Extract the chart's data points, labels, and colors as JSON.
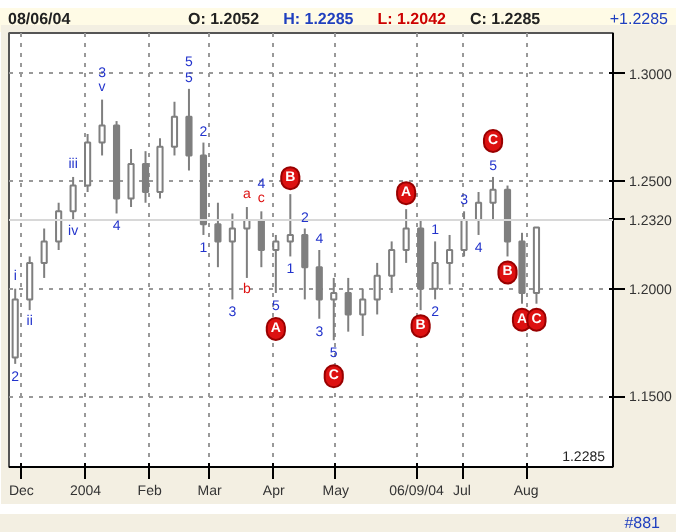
{
  "chart_data": {
    "type": "candlestick",
    "color": "#7f7f7f",
    "x": [
      "2003-11-28",
      "2003-12-05",
      "2003-12-12",
      "2003-12-19",
      "2003-12-26",
      "2004-01-02",
      "2004-01-09",
      "2004-01-16",
      "2004-01-23",
      "2004-01-30",
      "2004-02-06",
      "2004-02-13",
      "2004-02-20",
      "2004-02-27",
      "2004-03-05",
      "2004-03-12",
      "2004-03-19",
      "2004-03-26",
      "2004-04-02",
      "2004-04-09",
      "2004-04-16",
      "2004-04-23",
      "2004-04-30",
      "2004-05-07",
      "2004-05-14",
      "2004-05-21",
      "2004-05-28",
      "2004-06-04",
      "2004-06-11",
      "2004-06-18",
      "2004-06-25",
      "2004-07-02",
      "2004-07-09",
      "2004-07-16",
      "2004-07-23",
      "2004-07-30",
      "2004-08-06"
    ],
    "ohlc": [
      [
        1.168,
        1.2,
        1.165,
        1.195
      ],
      [
        1.195,
        1.215,
        1.19,
        1.212
      ],
      [
        1.212,
        1.228,
        1.205,
        1.222
      ],
      [
        1.222,
        1.24,
        1.218,
        1.236
      ],
      [
        1.236,
        1.252,
        1.232,
        1.248
      ],
      [
        1.248,
        1.272,
        1.245,
        1.268
      ],
      [
        1.268,
        1.288,
        1.262,
        1.276
      ],
      [
        1.276,
        1.278,
        1.235,
        1.242
      ],
      [
        1.242,
        1.265,
        1.238,
        1.258
      ],
      [
        1.258,
        1.264,
        1.24,
        1.245
      ],
      [
        1.245,
        1.27,
        1.242,
        1.266
      ],
      [
        1.266,
        1.287,
        1.262,
        1.28
      ],
      [
        1.28,
        1.293,
        1.255,
        1.262
      ],
      [
        1.262,
        1.268,
        1.225,
        1.23
      ],
      [
        1.23,
        1.24,
        1.21,
        1.222
      ],
      [
        1.222,
        1.235,
        1.195,
        1.228
      ],
      [
        1.228,
        1.238,
        1.205,
        1.232
      ],
      [
        1.232,
        1.236,
        1.21,
        1.218
      ],
      [
        1.218,
        1.225,
        1.198,
        1.222
      ],
      [
        1.222,
        1.244,
        1.215,
        1.225
      ],
      [
        1.225,
        1.228,
        1.195,
        1.21
      ],
      [
        1.21,
        1.218,
        1.186,
        1.195
      ],
      [
        1.195,
        1.205,
        1.176,
        1.198
      ],
      [
        1.198,
        1.205,
        1.18,
        1.188
      ],
      [
        1.188,
        1.2,
        1.178,
        1.195
      ],
      [
        1.195,
        1.212,
        1.188,
        1.206
      ],
      [
        1.206,
        1.222,
        1.198,
        1.218
      ],
      [
        1.218,
        1.237,
        1.212,
        1.228
      ],
      [
        1.228,
        1.232,
        1.19,
        1.2
      ],
      [
        1.2,
        1.222,
        1.195,
        1.212
      ],
      [
        1.212,
        1.225,
        1.202,
        1.218
      ],
      [
        1.218,
        1.236,
        1.215,
        1.232
      ],
      [
        1.232,
        1.245,
        1.225,
        1.24
      ],
      [
        1.24,
        1.252,
        1.232,
        1.246
      ],
      [
        1.246,
        1.248,
        1.215,
        1.222
      ],
      [
        1.222,
        1.226,
        1.193,
        1.198
      ],
      [
        1.198,
        1.2285,
        1.193,
        1.2285
      ]
    ],
    "xlim": [
      "2003-11-25",
      "2004-09-12"
    ],
    "ylim": [
      1.117,
      1.319
    ],
    "xticks": [
      {
        "value": "2003-12-01",
        "label": "Dec"
      },
      {
        "value": "2004-01-01",
        "label": "2004"
      },
      {
        "value": "2004-02-01",
        "label": "Feb"
      },
      {
        "value": "2004-03-01",
        "label": "Mar"
      },
      {
        "value": "2004-04-01",
        "label": "Apr"
      },
      {
        "value": "2004-05-01",
        "label": "May"
      },
      {
        "value": "2004-06-09",
        "label": "06/09/04"
      },
      {
        "value": "2004-07-01",
        "label": "Jul"
      },
      {
        "value": "2004-08-01",
        "label": "Aug"
      }
    ],
    "yticks": [
      {
        "value": 1.15,
        "label": "1.1500"
      },
      {
        "value": 1.2,
        "label": "1.2000"
      },
      {
        "value": 1.25,
        "label": "1.2500"
      },
      {
        "value": 1.3,
        "label": "1.3000"
      }
    ],
    "grid": true,
    "ref_lines": [
      {
        "axis": "y",
        "value": 1.232,
        "label": "1.2320",
        "color": "#d8d8d8"
      }
    ],
    "annotations": [
      "08/06/04",
      "O: 1.2052",
      "H: 1.2285",
      "L: 1.2042",
      "C: 1.2285",
      "+1.2285",
      "1.2285",
      "#881",
      {
        "text": "2",
        "x": "2003-11-28",
        "y": 1.165
      },
      {
        "text": "i",
        "x": "2003-11-28",
        "y": 1.2
      },
      {
        "text": "ii",
        "x": "2003-12-05",
        "y": 1.19
      },
      {
        "text": "iii",
        "x": "2003-12-26",
        "y": 1.252
      },
      {
        "text": "iv",
        "x": "2003-12-26",
        "y": 1.232
      },
      {
        "text": "v",
        "x": "2004-01-09",
        "y": 1.288
      },
      {
        "text": "3",
        "x": "2004-01-09",
        "y": 1.288
      },
      {
        "text": "4",
        "x": "2004-01-16",
        "y": 1.235
      },
      {
        "text": "5",
        "x": "2004-02-20",
        "y": 1.293
      },
      {
        "text": "5",
        "x": "2004-02-20",
        "y": 1.293
      },
      {
        "text": "1",
        "x": "2004-02-27",
        "y": 1.225
      },
      {
        "text": "2",
        "x": "2004-02-27",
        "y": 1.268
      },
      {
        "text": "3",
        "x": "2004-03-12",
        "y": 1.195
      },
      {
        "text": "a",
        "x": "2004-03-19",
        "y": 1.238
      },
      {
        "text": "b",
        "x": "2004-03-19",
        "y": 1.205
      },
      {
        "text": "c",
        "x": "2004-03-26",
        "y": 1.236
      },
      {
        "text": "4",
        "x": "2004-03-26",
        "y": 1.236
      },
      {
        "text": "5",
        "x": "2004-04-02",
        "y": 1.198
      },
      {
        "text": "A",
        "x": "2004-04-02",
        "y": 1.198
      },
      {
        "text": "B",
        "x": "2004-04-09",
        "y": 1.244
      },
      {
        "text": "1",
        "x": "2004-04-09",
        "y": 1.215
      },
      {
        "text": "2",
        "x": "2004-04-16",
        "y": 1.228
      },
      {
        "text": "3",
        "x": "2004-04-23",
        "y": 1.186
      },
      {
        "text": "4",
        "x": "2004-04-23",
        "y": 1.218
      },
      {
        "text": "5",
        "x": "2004-04-30",
        "y": 1.176
      },
      {
        "text": "C",
        "x": "2004-04-30",
        "y": 1.176
      },
      {
        "text": "A",
        "x": "2004-06-04",
        "y": 1.237
      },
      {
        "text": "B",
        "x": "2004-06-11",
        "y": 1.19
      },
      {
        "text": "1",
        "x": "2004-06-18",
        "y": 1.222
      },
      {
        "text": "2",
        "x": "2004-06-18",
        "y": 1.195
      },
      {
        "text": "3",
        "x": "2004-07-02",
        "y": 1.236
      },
      {
        "text": "4",
        "x": "2004-07-09",
        "y": 1.225
      },
      {
        "text": "5",
        "x": "2004-07-16",
        "y": 1.252
      },
      {
        "text": "C",
        "x": "2004-07-16",
        "y": 1.252
      },
      {
        "text": "B",
        "x": "2004-07-23",
        "y": 1.215
      },
      {
        "text": "A",
        "x": "2004-07-30",
        "y": 1.193
      },
      {
        "text": "C",
        "x": "2004-08-06",
        "y": 1.193
      }
    ]
  }
}
